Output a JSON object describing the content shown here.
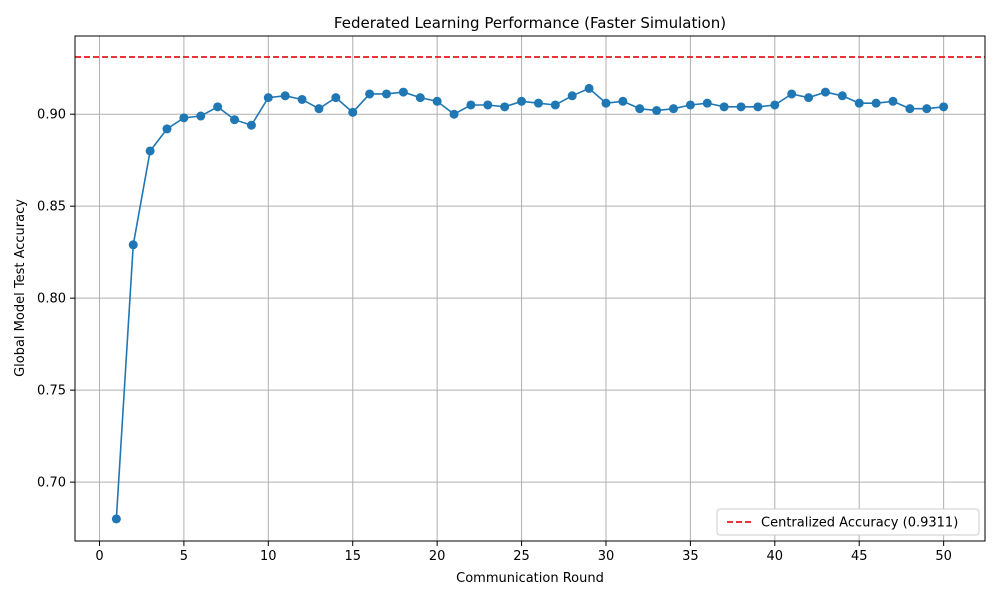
{
  "chart_data": {
    "type": "line",
    "title": "Federated Learning Performance (Faster Simulation)",
    "xlabel": "Communication Round",
    "ylabel": "Global Model Test Accuracy",
    "xlim": [
      -1.45,
      52.45
    ],
    "ylim": [
      0.668,
      0.9425
    ],
    "xticks": [
      0,
      5,
      10,
      15,
      20,
      25,
      30,
      35,
      40,
      45,
      50
    ],
    "yticks": [
      0.7,
      0.75,
      0.8,
      0.85,
      0.9
    ],
    "ytick_labels": [
      "0.70",
      "0.75",
      "0.80",
      "0.85",
      "0.90"
    ],
    "grid": true,
    "legend_position": "bottom-right",
    "series": [
      {
        "color": "#1f77b4",
        "marker": "circle",
        "x": [
          1,
          2,
          3,
          4,
          5,
          6,
          7,
          8,
          9,
          10,
          11,
          12,
          13,
          14,
          15,
          16,
          17,
          18,
          19,
          20,
          21,
          22,
          23,
          24,
          25,
          26,
          27,
          28,
          29,
          30,
          31,
          32,
          33,
          34,
          35,
          36,
          37,
          38,
          39,
          40,
          41,
          42,
          43,
          44,
          45,
          46,
          47,
          48,
          49,
          50
        ],
        "y": [
          0.68,
          0.829,
          0.88,
          0.892,
          0.898,
          0.899,
          0.904,
          0.897,
          0.894,
          0.909,
          0.91,
          0.908,
          0.903,
          0.909,
          0.901,
          0.911,
          0.911,
          0.912,
          0.909,
          0.907,
          0.9,
          0.905,
          0.905,
          0.904,
          0.907,
          0.906,
          0.905,
          0.91,
          0.914,
          0.906,
          0.907,
          0.903,
          0.902,
          0.903,
          0.905,
          0.906,
          0.904,
          0.904,
          0.904,
          0.905,
          0.911,
          0.909,
          0.912,
          0.91,
          0.906,
          0.906,
          0.907,
          0.903,
          0.903,
          0.904
        ]
      }
    ],
    "reference_line": {
      "name": "Centralized Accuracy (0.9311)",
      "value": 0.9311,
      "color": "#e41a1c",
      "style": "dashed"
    }
  }
}
